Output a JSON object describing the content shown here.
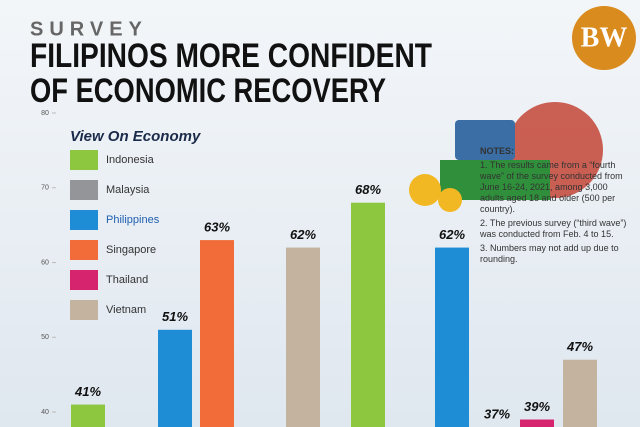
{
  "header": {
    "kicker": "SURVEY",
    "title_lines": [
      "FILIPINOS MORE CONFIDENT",
      "OF ECONOMIC RECOVERY"
    ],
    "logo": "BW"
  },
  "chart_data": {
    "type": "bar",
    "categories": [
      null,
      null,
      null,
      null,
      null,
      null,
      null,
      null,
      null
    ],
    "values": [
      41,
      51,
      63,
      62,
      68,
      62,
      37,
      39,
      47
    ],
    "value_labels": [
      "41%",
      "51%",
      "63%",
      "62%",
      "68%",
      "62%",
      "37%",
      "39%",
      "47%"
    ],
    "colors": [
      "#8dc63f",
      "#1f8dd6",
      "#f26c3a",
      "#c4b49f",
      "#8dc63f",
      "#1f8dd6",
      "#939598",
      "#d6246e",
      "#c4b49f"
    ],
    "ylim": [
      38,
      80
    ],
    "yticks": [
      40,
      50,
      60,
      70,
      80
    ],
    "legend": {
      "title": "View On Economy",
      "items": [
        {
          "name": "Indonesia",
          "color": "#8dc63f"
        },
        {
          "name": "Malaysia",
          "color": "#939598"
        },
        {
          "name": "Philippines",
          "color": "#1f8dd6"
        },
        {
          "name": "Singapore",
          "color": "#f26c3a"
        },
        {
          "name": "Thailand",
          "color": "#d6246e"
        },
        {
          "name": "Vietnam",
          "color": "#c4b49f"
        }
      ]
    }
  },
  "notes": {
    "heading": "NOTES:",
    "items": [
      "1. The results came from a “fourth wave” of the survey conducted from June 16-24, 2021, among 3,000 adults aged 18 and older (500 per country).",
      "2. The previous survey (“third wave”) was conducted from Feb. 4 to 15.",
      "3. Numbers may not add up due to rounding."
    ]
  }
}
